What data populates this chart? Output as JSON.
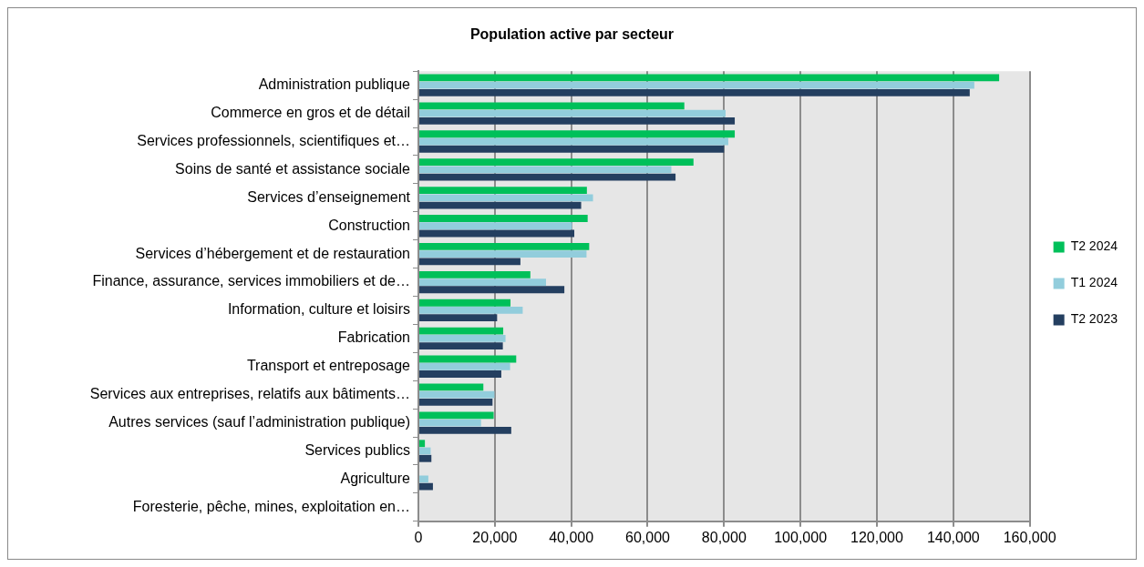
{
  "chart_data": {
    "type": "bar",
    "orientation": "horizontal",
    "title": "Population active par secteur",
    "categories": [
      "Administration publique",
      "Commerce en gros et de détail",
      "Services professionnels, scientifiques et…",
      "Soins de santé et assistance sociale",
      "Services d’enseignement",
      "Construction",
      "Services d’hébergement et de restauration",
      "Finance, assurance, services immobiliers et de…",
      "Information, culture et loisirs",
      "Fabrication",
      "Transport et entreposage",
      "Services aux entreprises, relatifs aux bâtiments…",
      "Autres services (sauf l’administration publique)",
      "Services publics",
      "Agriculture",
      "Foresterie, pêche, mines, exploitation en…"
    ],
    "series": [
      {
        "name": "T2 2024",
        "color": "#00c05a",
        "values": [
          152000,
          69600,
          82800,
          72000,
          44100,
          44300,
          44700,
          29300,
          24100,
          22200,
          25600,
          17000,
          19700,
          1700,
          null,
          null
        ]
      },
      {
        "name": "T1 2024",
        "color": "#92cddc",
        "values": [
          145500,
          80400,
          81100,
          66200,
          45700,
          40200,
          44000,
          33400,
          27300,
          22800,
          24000,
          19900,
          16400,
          3200,
          2600,
          null
        ]
      },
      {
        "name": "T2 2023",
        "color": "#243f60",
        "values": [
          144300,
          82800,
          80000,
          67300,
          42600,
          40800,
          26700,
          38200,
          20600,
          22100,
          21700,
          19400,
          24300,
          3400,
          3800,
          null
        ]
      }
    ],
    "xlim": [
      0,
      160000
    ],
    "xticks": [
      0,
      {
        "value": 20000,
        "label": "20,000"
      },
      {
        "value": 40000,
        "label": "40,000"
      },
      {
        "value": 60000,
        "label": "60,000"
      },
      {
        "value": 80000,
        "label": "80,000"
      },
      {
        "value": 100000,
        "label": "100,000"
      },
      {
        "value": 120000,
        "label": "120,000"
      },
      {
        "value": 140000,
        "label": "140,000"
      },
      {
        "value": 160000,
        "label": "160,000"
      }
    ],
    "grid": "x",
    "legend": "right"
  }
}
